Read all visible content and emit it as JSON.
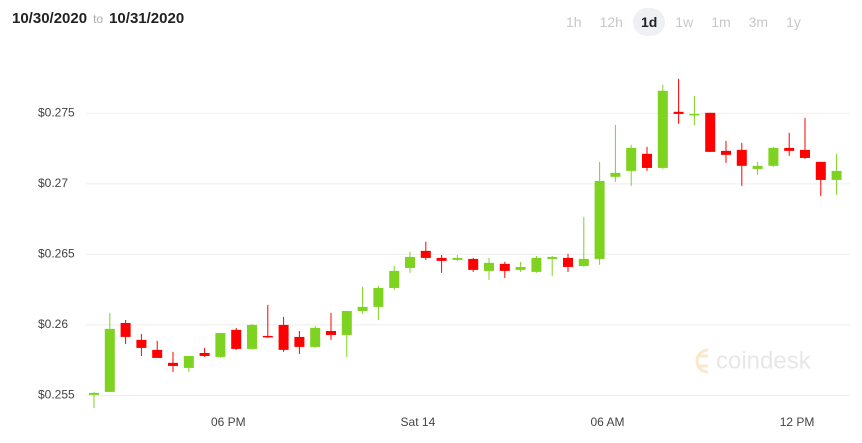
{
  "header": {
    "from": "10/30/2020",
    "connector": "to",
    "to": "10/31/2020"
  },
  "range_buttons": [
    "1h",
    "12h",
    "1d",
    "1w",
    "1m",
    "3m",
    "1y"
  ],
  "selected_range": "1d",
  "watermark": "coindesk",
  "chart_data": {
    "type": "candlestick",
    "categories": [
      null,
      null,
      null,
      null,
      null,
      null,
      null,
      null,
      "06 PM",
      null,
      null,
      null,
      null,
      null,
      null,
      null,
      null,
      null,
      null,
      null,
      "Sat 14",
      null,
      null,
      null,
      null,
      null,
      null,
      null,
      null,
      null,
      null,
      null,
      "06 AM",
      null,
      null,
      null,
      null,
      null,
      null,
      null,
      null,
      null,
      null,
      null,
      "12 PM",
      null,
      null,
      null
    ],
    "open": [
      0.25504,
      0.25525,
      0.26014,
      0.25894,
      0.25823,
      0.25731,
      0.25695,
      0.25801,
      0.25773,
      0.25965,
      0.2583,
      0.25922,
      0.26,
      0.25915,
      0.25844,
      0.25957,
      0.25929,
      0.26099,
      0.26128,
      0.26262,
      0.26404,
      0.26525,
      0.26475,
      0.26461,
      0.26468,
      0.26383,
      0.26433,
      0.2639,
      0.26376,
      0.26468,
      0.26475,
      0.26418,
      0.26468,
      0.2705,
      0.27092,
      0.27213,
      0.27113,
      0.27511,
      0.27489,
      0.27504,
      0.27234,
      0.27241,
      0.27106,
      0.27128,
      0.27255,
      0.27241,
      0.27156,
      0.27028
    ],
    "high": [
      0.25525,
      0.26085,
      0.26035,
      0.25936,
      0.25887,
      0.25809,
      0.2578,
      0.25837,
      0.25943,
      0.25979,
      0.26007,
      0.26142,
      0.26057,
      0.25957,
      0.25993,
      0.26085,
      0.26099,
      0.2627,
      0.26277,
      0.26418,
      0.26518,
      0.26589,
      0.26496,
      0.26496,
      0.26475,
      0.26475,
      0.26447,
      0.26447,
      0.26489,
      0.26489,
      0.26504,
      0.26766,
      0.27156,
      0.27418,
      0.27277,
      0.27262,
      0.27702,
      0.27745,
      0.27624,
      0.27504,
      0.27305,
      0.27291,
      0.27156,
      0.27262,
      0.27362,
      0.27468,
      0.27156,
      0.27213
    ],
    "low": [
      0.25411,
      0.25525,
      0.25865,
      0.2578,
      0.25766,
      0.25667,
      0.25667,
      0.25773,
      0.25766,
      0.25823,
      0.25823,
      0.25908,
      0.25809,
      0.25794,
      0.25837,
      0.25894,
      0.25773,
      0.26078,
      0.26035,
      0.26248,
      0.26369,
      0.26461,
      0.26369,
      0.26454,
      0.26376,
      0.26319,
      0.26333,
      0.26376,
      0.26369,
      0.26348,
      0.26376,
      0.26411,
      0.26426,
      0.27014,
      0.26986,
      0.27092,
      0.27106,
      0.27426,
      0.27418,
      0.27227,
      0.27149,
      0.26986,
      0.27064,
      0.27121,
      0.27199,
      0.27177,
      0.26915,
      0.26922
    ],
    "close": [
      0.25518,
      0.25972,
      0.25915,
      0.25837,
      0.25766,
      0.25709,
      0.2578,
      0.2578,
      0.25943,
      0.2583,
      0.26,
      0.25915,
      0.25823,
      0.25844,
      0.25979,
      0.25929,
      0.26099,
      0.26128,
      0.26262,
      0.26383,
      0.26482,
      0.26475,
      0.26454,
      0.26475,
      0.2639,
      0.2644,
      0.26383,
      0.26411,
      0.26475,
      0.26482,
      0.26411,
      0.26468,
      0.27021,
      0.27078,
      0.27255,
      0.27113,
      0.2766,
      0.27496,
      0.27496,
      0.27227,
      0.27206,
      0.27128,
      0.27128,
      0.27255,
      0.27234,
      0.27184,
      0.27028,
      0.27092
    ],
    "up_color": "#7ed321",
    "down_color": "#ff0000",
    "ylim": [
      0.2535,
      0.2785
    ],
    "yticks": [
      {
        "value": 0.255,
        "label": "$0.255"
      },
      {
        "value": 0.26,
        "label": "$0.26"
      },
      {
        "value": 0.265,
        "label": "$0.265"
      },
      {
        "value": 0.27,
        "label": "$0.27"
      },
      {
        "value": 0.275,
        "label": "$0.275"
      }
    ],
    "grid": true
  }
}
